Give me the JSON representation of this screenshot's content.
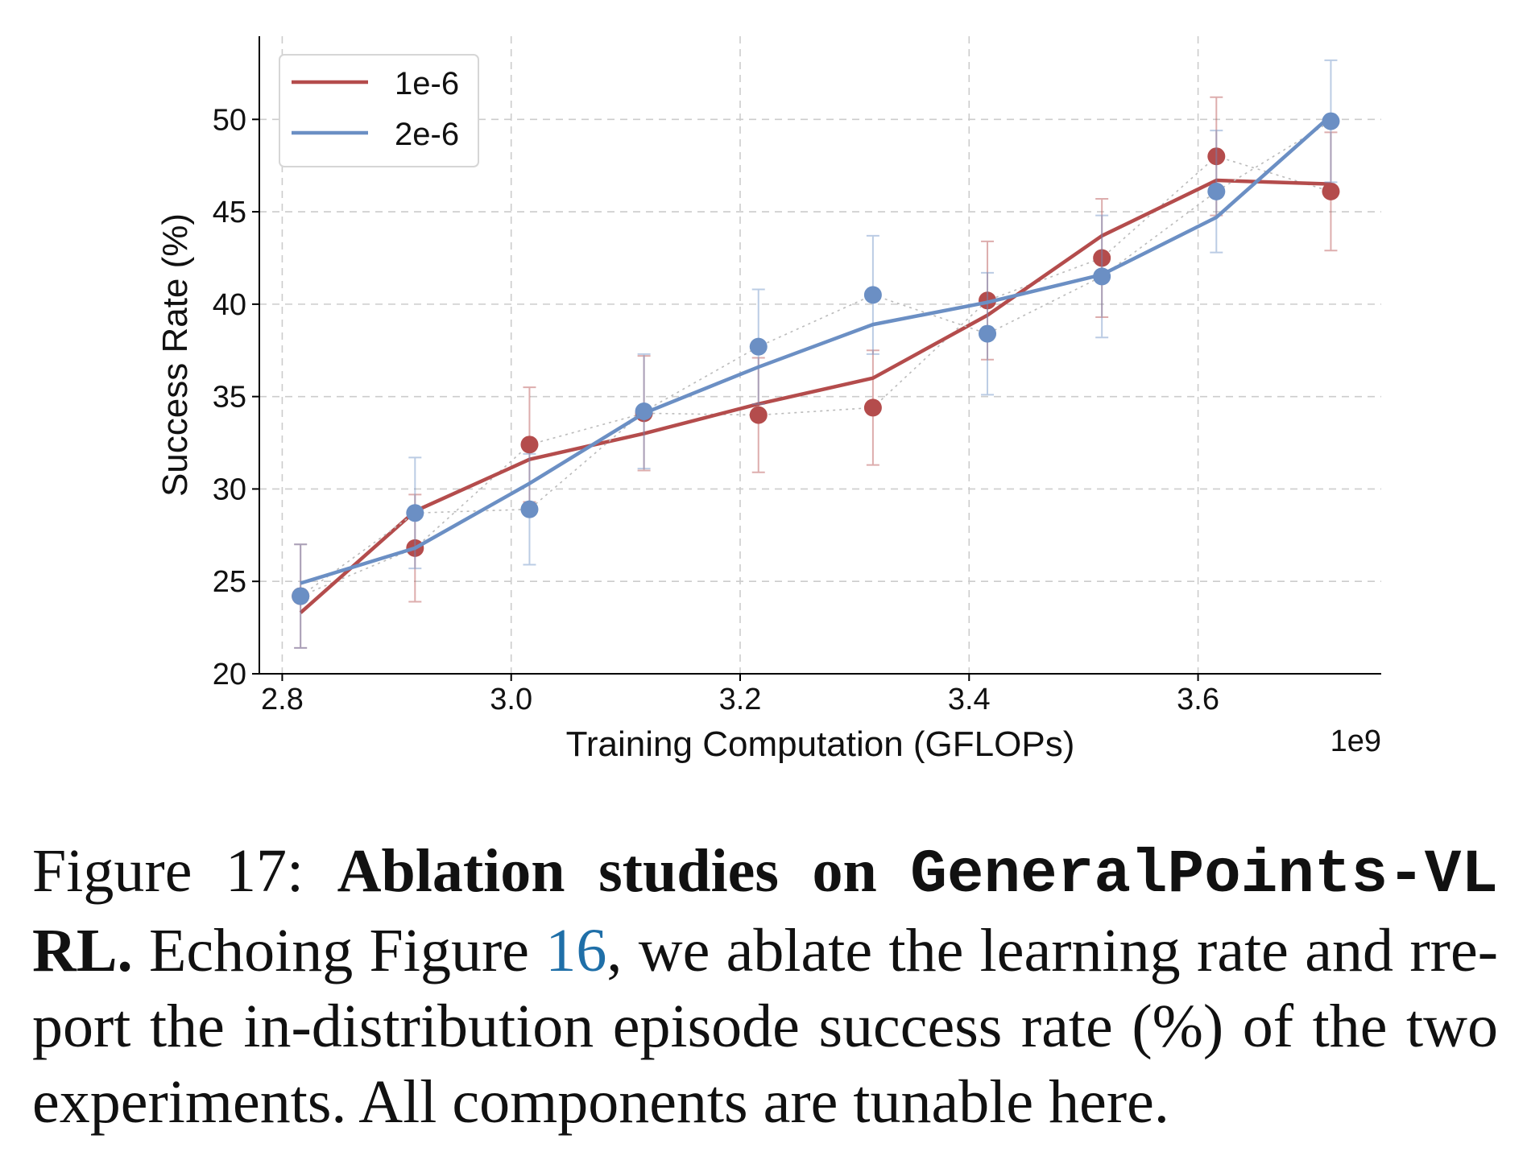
{
  "chart_data": {
    "type": "line",
    "xlabel": "Training Computation (GFLOPs)",
    "ylabel": "Success Rate (%)",
    "x_offset_label": "1e9",
    "xlim": [
      2.78,
      3.76
    ],
    "ylim": [
      20,
      54.5
    ],
    "xticks": [
      "2.8",
      "3.0",
      "3.2",
      "3.4",
      "3.6"
    ],
    "xtick_values": [
      2.8,
      3.0,
      3.2,
      3.4,
      3.6
    ],
    "yticks": [
      "20",
      "25",
      "30",
      "35",
      "40",
      "45",
      "50"
    ],
    "ytick_values": [
      20,
      25,
      30,
      35,
      40,
      45,
      50
    ],
    "grid": true,
    "legend_position": "top-left",
    "x": [
      2.816,
      2.916,
      3.016,
      3.116,
      3.216,
      3.316,
      3.416,
      3.516,
      3.616,
      3.716
    ],
    "series": [
      {
        "name": "1e-6",
        "color": "#b44c4c",
        "points": [
          24.2,
          26.8,
          32.4,
          34.1,
          34.0,
          34.4,
          40.2,
          42.5,
          48.0,
          46.1
        ],
        "fit": [
          23.3,
          28.8,
          31.6,
          33.0,
          34.6,
          36.0,
          39.4,
          43.7,
          46.7,
          46.5
        ],
        "errors": [
          2.8,
          2.9,
          3.1,
          3.1,
          3.1,
          3.1,
          3.2,
          3.2,
          3.2,
          3.2
        ]
      },
      {
        "name": "2e-6",
        "color": "#6b8fc4",
        "points": [
          24.2,
          28.7,
          28.9,
          34.2,
          37.7,
          40.5,
          38.4,
          41.5,
          46.1,
          49.9
        ],
        "fit": [
          24.9,
          26.8,
          30.3,
          34.1,
          36.6,
          38.9,
          40.1,
          41.6,
          44.7,
          50.2
        ],
        "errors": [
          2.8,
          3.0,
          3.0,
          3.1,
          3.1,
          3.2,
          3.3,
          3.3,
          3.3,
          3.3
        ]
      }
    ]
  },
  "caption": {
    "label": "Figure 17:",
    "title": "Ablation studies on",
    "title_code": "GeneralPoints-VL",
    "title_end": "RL.",
    "text_before_ref": "Echoing Figure",
    "ref": "16",
    "text_after_ref": ", we ablate the learning rate and rre- port the in-distribution episode success rate (%) of the two experiments. All components are tunable here."
  }
}
